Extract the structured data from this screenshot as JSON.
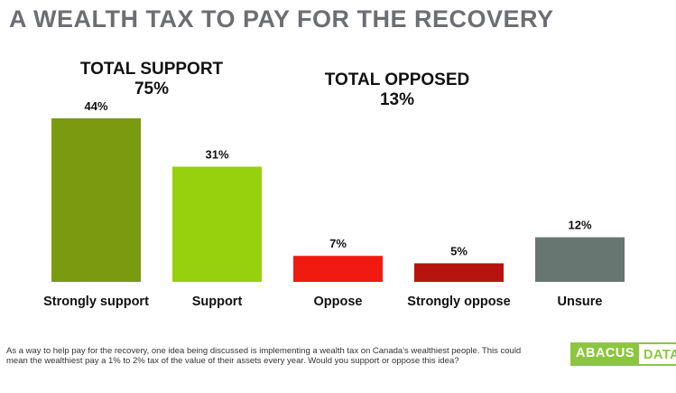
{
  "title": "A WEALTH TAX TO PAY FOR THE RECOVERY",
  "groups": {
    "support": {
      "label": "TOTAL SUPPORT",
      "value": "75%"
    },
    "opposed": {
      "label": "TOTAL OPPOSED",
      "value": "13%"
    }
  },
  "chart_data": {
    "type": "bar",
    "categories": [
      "Strongly support",
      "Support",
      "Oppose",
      "Strongly oppose",
      "Unsure"
    ],
    "values": [
      44,
      31,
      7,
      5,
      12
    ],
    "data_labels": [
      "44%",
      "31%",
      "7%",
      "5%",
      "12%"
    ],
    "colors": [
      "#7a9a0f",
      "#97d10d",
      "#f01a10",
      "#b8140f",
      "#687671"
    ],
    "ylim": [
      0,
      45
    ],
    "grid": false
  },
  "footnote": "As a way to help pay for the recovery, one idea being discussed is implementing  a wealth tax on Canada's wealthiest people. This could mean the wealthiest pay a 1% to 2% tax of the value of their assets every year. Would you support or oppose this idea?",
  "logo": {
    "part1": "ABACUS",
    "part2": "DATA",
    "color": "#8cc63f"
  }
}
